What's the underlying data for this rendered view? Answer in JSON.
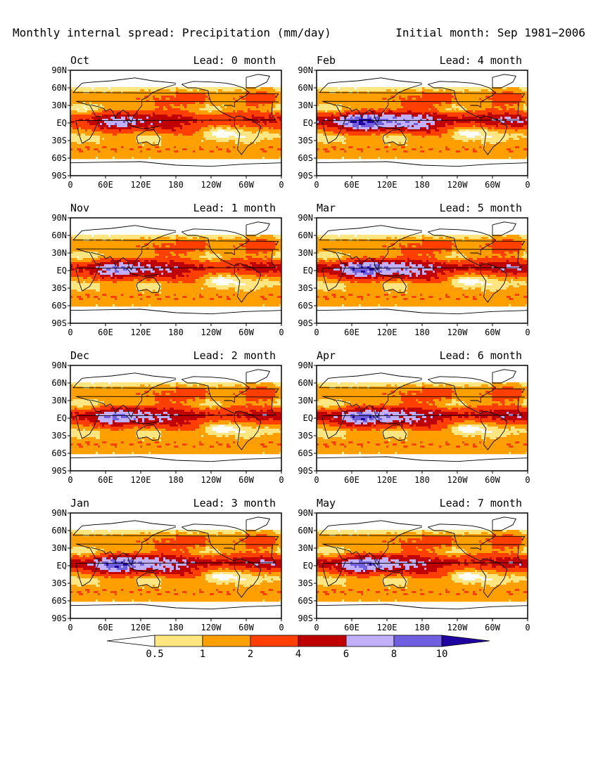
{
  "title_left": "Monthly internal spread: Precipitation (mm/day)",
  "title_right": "Initial month: Sep 1981−2006",
  "colors": {
    "below": "#ffffff",
    "levels": [
      "#ffe680",
      "#ffa000",
      "#ff3f00",
      "#c00000",
      "#c0b0ff",
      "#7060e0",
      "#2000a0"
    ],
    "coast": "#000000"
  },
  "chart_data": {
    "type": "heatmap",
    "variable": "Monthly internal spread: Precipitation",
    "units": "mm/day",
    "initial_month": "Sep 1981−2006",
    "xlabels": [
      "0",
      "60E",
      "120E",
      "180",
      "120W",
      "60W",
      "0"
    ],
    "ylabels": [
      "90N",
      "60N",
      "30N",
      "EQ",
      "30S",
      "60S",
      "90S"
    ],
    "xlim": [
      0,
      360
    ],
    "ylim": [
      -90,
      90
    ],
    "colorbar": {
      "ticks": [
        "0.5",
        "1",
        "2",
        "4",
        "6",
        "8",
        "10"
      ],
      "values": [
        0.5,
        1,
        2,
        4,
        6,
        8,
        10
      ]
    },
    "panels": [
      {
        "month": "Oct",
        "lead": "Lead: 0 month",
        "intensity": 0.85
      },
      {
        "month": "Feb",
        "lead": "Lead: 4 month",
        "intensity": 1.25
      },
      {
        "month": "Nov",
        "lead": "Lead: 1 month",
        "intensity": 0.95
      },
      {
        "month": "Mar",
        "lead": "Lead: 5 month",
        "intensity": 1.15
      },
      {
        "month": "Dec",
        "lead": "Lead: 2 month",
        "intensity": 1.0
      },
      {
        "month": "Apr",
        "lead": "Lead: 6 month",
        "intensity": 1.1
      },
      {
        "month": "Jan",
        "lead": "Lead: 3 month",
        "intensity": 1.15
      },
      {
        "month": "May",
        "lead": "Lead: 7 month",
        "intensity": 1.05
      }
    ]
  }
}
